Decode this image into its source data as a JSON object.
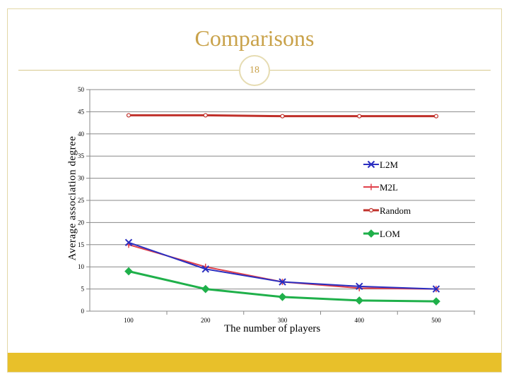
{
  "slide": {
    "title": "Comparisons",
    "number": "18"
  },
  "colors": {
    "title": "#c9a24a",
    "footer_bar": "#e8c02a",
    "grid": "#888888"
  },
  "chart_data": {
    "type": "line",
    "title": "",
    "xlabel": "The number of players",
    "ylabel": "Average association degree",
    "x": [
      100,
      200,
      300,
      400,
      500
    ],
    "xlim": [
      0,
      500
    ],
    "ylim": [
      0,
      50
    ],
    "yticks": [
      0,
      5,
      10,
      15,
      20,
      25,
      30,
      35,
      40,
      45,
      50
    ],
    "grid": "horizontal",
    "legend_position": "right",
    "series": [
      {
        "name": "L2M",
        "values": [
          15.5,
          9.5,
          6.6,
          5.6,
          5.0
        ],
        "color": "#2a2ec0",
        "marker": "x"
      },
      {
        "name": "M2L",
        "values": [
          15.0,
          10.0,
          6.6,
          5.2,
          5.0
        ],
        "color": "#e0404a",
        "marker": "plus"
      },
      {
        "name": "Random",
        "values": [
          44.2,
          44.2,
          44.0,
          44.0,
          44.0
        ],
        "color": "#c0302a",
        "marker": "circle"
      },
      {
        "name": "LOM",
        "values": [
          9.0,
          5.0,
          3.2,
          2.4,
          2.2
        ],
        "color": "#1fb04a",
        "marker": "diamond"
      }
    ]
  }
}
